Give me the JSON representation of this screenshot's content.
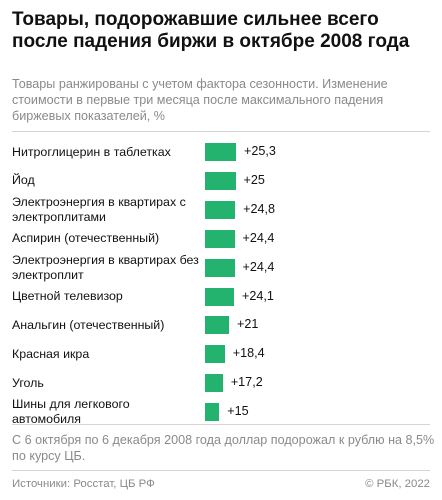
{
  "header": {
    "title": "Товары, подорожавшие сильнее всего после падения биржи в октябре 2008 года",
    "subtitle": "Товары ранжированы с учетом фактора сезонности. Изменение стоимости в первые три месяца после максимального падения биржевых показателей, %"
  },
  "chart_data": {
    "type": "bar",
    "orientation": "horizontal",
    "bar_color": "#23b36e",
    "categories": [
      "Нитроглицерин в таблетках",
      "Йод",
      "Электроэнергия в квартирах с электроплитами",
      "Аспирин (отечественный)",
      "Электроэнергия в квартирах без электроплит",
      "Цветной телевизор",
      "Анальгин (отечественный)",
      "Красная икра",
      "Уголь",
      "Шины для легкового автомобиля"
    ],
    "values": [
      25.3,
      25,
      24.8,
      24.4,
      24.4,
      24.1,
      21,
      18.4,
      17.2,
      15
    ],
    "value_labels": [
      "+25,3",
      "+25",
      "+24,8",
      "+24,4",
      "+24,4",
      "+24,1",
      "+21",
      "+18,4",
      "+17,2",
      "+15"
    ],
    "xlim": [
      0,
      25.3
    ],
    "grid": false,
    "legend": "none"
  },
  "footer": {
    "note": "С 6 октября по 6 декабря 2008 года доллар подорожал к рублю на 8,5% по курсу ЦБ.",
    "source": "Источники: Росстат, ЦБ РФ",
    "copyright": "© РБК, 2022"
  }
}
